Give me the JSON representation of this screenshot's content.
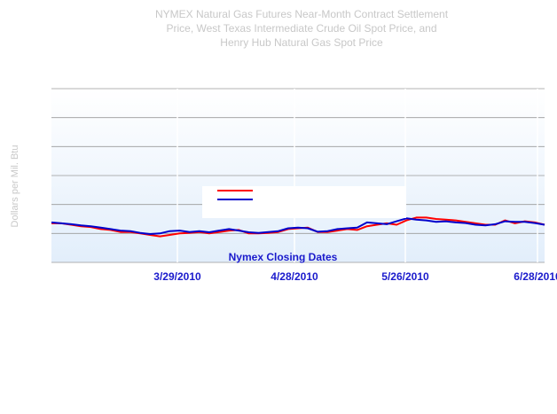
{
  "chart_data": {
    "type": "line",
    "title": "NYMEX Natural Gas Futures Near-Month Contract Settlement Price, West Texas Intermediate Crude Oil Spot Price, and Henry Hub Natural Gas Spot Price",
    "title_lines": [
      "NYMEX Natural Gas Futures Near-Month Contract Settlement",
      "Price, West Texas Intermediate Crude Oil Spot Price, and",
      "Henry Hub Natural Gas Spot Price"
    ],
    "xlabel": "Nymex Closing Dates",
    "ylabel": "Dollars per Mil. Btu",
    "x_ticks": [
      "3/29/2010",
      "4/28/2010",
      "5/26/2010",
      "6/28/2010"
    ],
    "ylim": [
      0,
      6
    ],
    "grid": true,
    "legend": {
      "placement": "center",
      "entries": [
        {
          "name": "",
          "color": "#ff0000"
        },
        {
          "name": "",
          "color": "#0000cc"
        }
      ]
    },
    "series": [
      {
        "name": "",
        "color": "#ff0000",
        "x": [
          0,
          2,
          4,
          6,
          8,
          10,
          12,
          14,
          16,
          18,
          20,
          22,
          24,
          26,
          28,
          30,
          32,
          34,
          36,
          38,
          40,
          42,
          44,
          46,
          48,
          50,
          52,
          54,
          56,
          58,
          60,
          62,
          64,
          66,
          68,
          70,
          72,
          74,
          76,
          78,
          80,
          82,
          84,
          86,
          88,
          90,
          92,
          94,
          96,
          98,
          100
        ],
        "y": [
          1.35,
          1.35,
          1.3,
          1.25,
          1.22,
          1.15,
          1.12,
          1.05,
          1.05,
          1.0,
          0.95,
          0.9,
          0.95,
          1.0,
          1.02,
          1.05,
          1.0,
          1.05,
          1.1,
          1.12,
          1.0,
          1.0,
          1.02,
          1.05,
          1.15,
          1.18,
          1.2,
          1.05,
          1.05,
          1.1,
          1.15,
          1.12,
          1.25,
          1.3,
          1.35,
          1.3,
          1.45,
          1.55,
          1.55,
          1.5,
          1.48,
          1.45,
          1.4,
          1.35,
          1.3,
          1.3,
          1.45,
          1.35,
          1.42,
          1.38,
          1.3
        ]
      },
      {
        "name": "",
        "color": "#0000cc",
        "x": [
          0,
          2,
          4,
          6,
          8,
          10,
          12,
          14,
          16,
          18,
          20,
          22,
          24,
          26,
          28,
          30,
          32,
          34,
          36,
          38,
          40,
          42,
          44,
          46,
          48,
          50,
          52,
          54,
          56,
          58,
          60,
          62,
          64,
          66,
          68,
          70,
          72,
          74,
          76,
          78,
          80,
          82,
          84,
          86,
          88,
          90,
          92,
          94,
          96,
          98,
          100
        ],
        "y": [
          1.38,
          1.35,
          1.32,
          1.28,
          1.25,
          1.2,
          1.15,
          1.1,
          1.08,
          1.02,
          0.98,
          1.0,
          1.08,
          1.1,
          1.05,
          1.08,
          1.04,
          1.1,
          1.15,
          1.1,
          1.04,
          1.02,
          1.05,
          1.08,
          1.18,
          1.2,
          1.18,
          1.06,
          1.08,
          1.15,
          1.18,
          1.2,
          1.38,
          1.35,
          1.32,
          1.42,
          1.52,
          1.48,
          1.45,
          1.4,
          1.42,
          1.38,
          1.36,
          1.3,
          1.28,
          1.32,
          1.42,
          1.4,
          1.4,
          1.36,
          1.3
        ]
      }
    ]
  }
}
